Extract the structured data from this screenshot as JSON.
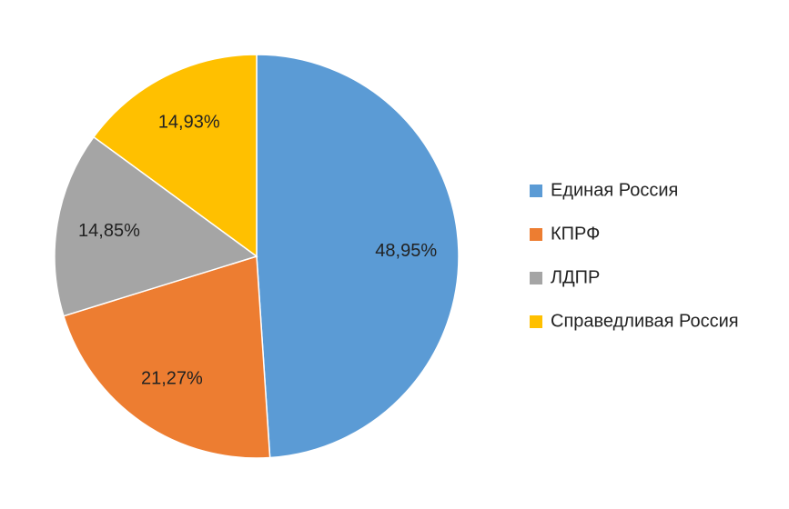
{
  "chart_data": {
    "type": "pie",
    "categories": [
      "Единая Россия",
      "КПРФ",
      "ЛДПР",
      "Справедливая Россия"
    ],
    "values": [
      48.95,
      21.27,
      14.85,
      14.93
    ],
    "value_labels": [
      "48,95%",
      "21,27%",
      "14,85%",
      "14,93%"
    ],
    "colors": [
      "#5b9bd5",
      "#ed7d31",
      "#a5a5a5",
      "#ffc000"
    ],
    "legend": "right"
  }
}
